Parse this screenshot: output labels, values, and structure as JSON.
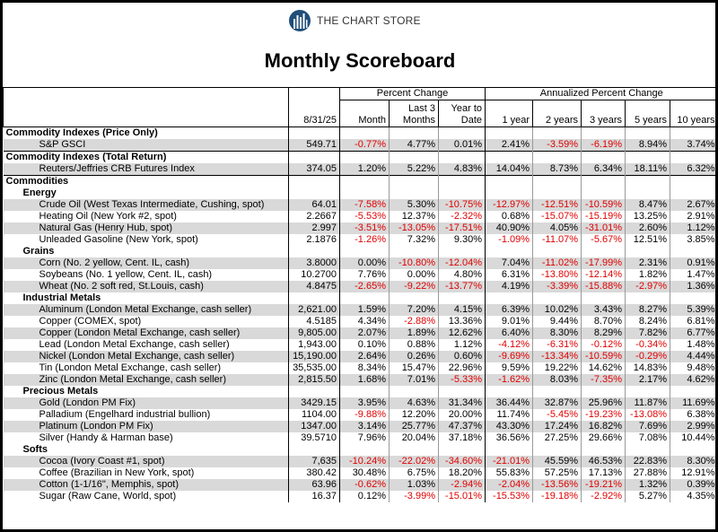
{
  "header": {
    "brand": "THE CHART STORE",
    "title": "Monthly Scoreboard"
  },
  "table": {
    "date": "8/31/25",
    "group1": {
      "title": "Percent Change",
      "columns": [
        "Month",
        "Last 3 Months",
        "Year to Date"
      ]
    },
    "group2": {
      "title": "Annualized Percent Change",
      "columns": [
        "1 year",
        "2 years",
        "3 years",
        "5 years",
        "10 years"
      ]
    },
    "sections": [
      {
        "title": "Commodity Indexes (Price Only)",
        "rows": [
          [
            "S&P GSCI",
            "549.71",
            "-0.77%",
            "4.77%",
            "0.01%",
            "2.41%",
            "-3.59%",
            "-6.19%",
            "8.94%",
            "3.74%"
          ]
        ]
      },
      {
        "title": "Commodity Indexes (Total Return)",
        "rows": [
          [
            "Reuters/Jeffries CRB Futures Index",
            "374.05",
            "1.20%",
            "5.22%",
            "4.83%",
            "14.04%",
            "8.73%",
            "6.34%",
            "18.11%",
            "6.32%"
          ]
        ]
      },
      {
        "title": "Commodities",
        "groups": [
          {
            "title": "Energy",
            "rows": [
              [
                "Crude Oil (West Texas Intermediate, Cushing, spot)",
                "64.01",
                "-7.58%",
                "5.30%",
                "-10.75%",
                "-12.97%",
                "-12.51%",
                "-10.59%",
                "8.47%",
                "2.67%"
              ],
              [
                "Heating Oil (New York #2, spot)",
                "2.2667",
                "-5.53%",
                "12.37%",
                "-2.32%",
                "0.68%",
                "-15.07%",
                "-15.19%",
                "13.25%",
                "2.91%"
              ],
              [
                "Natural Gas (Henry Hub, spot)",
                "2.997",
                "-3.51%",
                "-13.05%",
                "-17.51%",
                "40.90%",
                "4.05%",
                "-31.01%",
                "2.60%",
                "1.12%"
              ],
              [
                "Unleaded Gasoline (New York, spot)",
                "2.1876",
                "-1.26%",
                "7.32%",
                "9.30%",
                "-1.09%",
                "-11.07%",
                "-5.67%",
                "12.51%",
                "3.85%"
              ]
            ]
          },
          {
            "title": "Grains",
            "rows": [
              [
                "Corn (No. 2 yellow, Cent. IL, cash)",
                "3.8000",
                "0.00%",
                "-10.80%",
                "-12.04%",
                "7.04%",
                "-11.02%",
                "-17.99%",
                "2.31%",
                "0.91%"
              ],
              [
                "Soybeans (No. 1 yellow,  Cent. IL, cash)",
                "10.2700",
                "7.76%",
                "0.00%",
                "4.80%",
                "6.31%",
                "-13.80%",
                "-12.14%",
                "1.82%",
                "1.47%"
              ],
              [
                "Wheat (No. 2 soft red, St.Louis, cash)",
                "4.8475",
                "-2.65%",
                "-9.22%",
                "-13.77%",
                "4.19%",
                "-3.39%",
                "-15.88%",
                "-2.97%",
                "1.36%"
              ]
            ]
          },
          {
            "title": "Industrial Metals",
            "rows": [
              [
                "Aluminum (London Metal Exchange, cash seller)",
                "2,621.00",
                "1.59%",
                "7.20%",
                "4.15%",
                "6.39%",
                "10.02%",
                "3.43%",
                "8.27%",
                "5.39%"
              ],
              [
                "Copper (COMEX, spot)",
                "4.5185",
                "4.34%",
                "-2.88%",
                "13.36%",
                "9.01%",
                "9.44%",
                "8.70%",
                "8.24%",
                "6.81%"
              ],
              [
                "Copper (London Metal Exchange, cash seller)",
                "9,805.00",
                "2.07%",
                "1.89%",
                "12.62%",
                "6.40%",
                "8.30%",
                "8.29%",
                "7.82%",
                "6.77%"
              ],
              [
                "Lead (London Metal Exchange, cash seller)",
                "1,943.00",
                "0.10%",
                "0.88%",
                "1.12%",
                "-4.12%",
                "-6.31%",
                "-0.12%",
                "-0.34%",
                "1.48%"
              ],
              [
                "Nickel (London Metal Exchange, cash seller)",
                "15,190.00",
                "2.64%",
                "0.26%",
                "0.60%",
                "-9.69%",
                "-13.34%",
                "-10.59%",
                "-0.29%",
                "4.44%"
              ],
              [
                "Tin (London Metal Exchange, cash seller)",
                "35,535.00",
                "8.34%",
                "15.47%",
                "22.96%",
                "9.59%",
                "19.22%",
                "14.62%",
                "14.83%",
                "9.48%"
              ],
              [
                "Zinc (London Metal Exchange, cash seller)",
                "2,815.50",
                "1.68%",
                "7.01%",
                "-5.33%",
                "-1.62%",
                "8.03%",
                "-7.35%",
                "2.17%",
                "4.62%"
              ]
            ]
          },
          {
            "title": "Precious Metals",
            "rows": [
              [
                "Gold (London PM Fix)",
                "3429.15",
                "3.95%",
                "4.63%",
                "31.34%",
                "36.44%",
                "32.87%",
                "25.96%",
                "11.87%",
                "11.69%"
              ],
              [
                "Palladium (Engelhard industrial bullion)",
                "1104.00",
                "-9.88%",
                "12.20%",
                "20.00%",
                "11.74%",
                "-5.45%",
                "-19.23%",
                "-13.08%",
                "6.38%"
              ],
              [
                "Platinum (London PM Fix)",
                "1347.00",
                "3.14%",
                "25.77%",
                "47.37%",
                "43.30%",
                "17.24%",
                "16.82%",
                "7.69%",
                "2.99%"
              ],
              [
                "Silver (Handy & Harman base)",
                "39.5710",
                "7.96%",
                "20.04%",
                "37.18%",
                "36.56%",
                "27.25%",
                "29.66%",
                "7.08%",
                "10.44%"
              ]
            ]
          },
          {
            "title": "Softs",
            "rows": [
              [
                "Cocoa (Ivory Coast #1, spot)",
                "7,635",
                "-10.24%",
                "-22.02%",
                "-34.60%",
                "-21.01%",
                "45.59%",
                "46.53%",
                "22.83%",
                "8.30%"
              ],
              [
                "Coffee (Brazilian in New York, spot)",
                "380.42",
                "30.48%",
                "6.75%",
                "18.20%",
                "55.83%",
                "57.25%",
                "17.13%",
                "27.88%",
                "12.91%"
              ],
              [
                "Cotton (1-1/16\", Memphis, spot)",
                "63.96",
                "-0.62%",
                "1.03%",
                "-2.94%",
                "-2.04%",
                "-13.56%",
                "-19.21%",
                "1.32%",
                "0.39%"
              ],
              [
                "Sugar (Raw Cane, World, spot)",
                "16.37",
                "0.12%",
                "-3.99%",
                "-15.01%",
                "-15.53%",
                "-19.18%",
                "-2.92%",
                "5.27%",
                "4.35%"
              ]
            ]
          }
        ]
      }
    ]
  }
}
